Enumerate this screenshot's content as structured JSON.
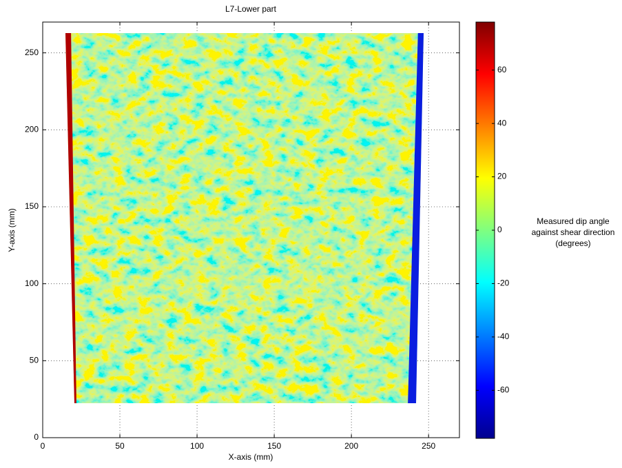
{
  "chart_data": {
    "type": "heatmap",
    "title": "L7-Lower part",
    "x_label": "X-axis (mm)",
    "y_label": "Y-axis (mm)",
    "xlim": [
      0,
      270
    ],
    "ylim": [
      0,
      270
    ],
    "xticks": [
      0,
      50,
      100,
      150,
      200,
      250
    ],
    "yticks": [
      0,
      50,
      100,
      150,
      200,
      250
    ],
    "grid": true,
    "colormap": "jet",
    "clim": [
      -78,
      78
    ],
    "cticks": [
      -60,
      -40,
      -20,
      0,
      20,
      40,
      60
    ],
    "colorbar_label": [
      "Measured dip angle",
      "against shear direction",
      "(degrees)"
    ]
  }
}
